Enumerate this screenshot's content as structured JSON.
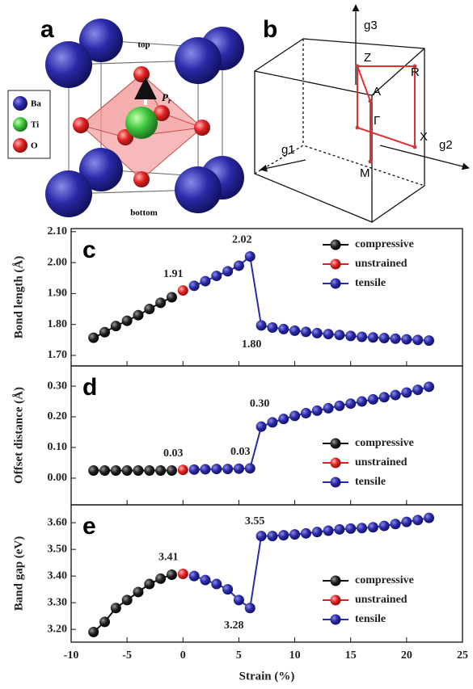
{
  "panels": {
    "a": {
      "label": "a",
      "top": "top",
      "bottom": "bottom",
      "polarization": "P",
      "polarization_sub": "r",
      "legend": [
        "Ba",
        "Ti",
        "O"
      ]
    },
    "b": {
      "label": "b",
      "axes": [
        "g1",
        "g2",
        "g3"
      ],
      "points": [
        "Z",
        "R",
        "A",
        "Γ",
        "X",
        "M"
      ]
    }
  },
  "chart_data": [
    {
      "type": "line",
      "label": "c",
      "ylabel": "Bond length (Å)",
      "legend": "upper right",
      "xlim": [
        -10,
        25
      ],
      "xticks": [
        -10,
        -5,
        0,
        5,
        10,
        15,
        20,
        25
      ],
      "ylim": [
        1.666,
        2.11
      ],
      "yticks": [
        {
          "value": 1.7,
          "label": "1.70"
        },
        {
          "value": 1.8,
          "label": "1.80"
        },
        {
          "value": 1.9,
          "label": "1.90"
        },
        {
          "value": 2.0,
          "label": "2.00"
        },
        {
          "value": 2.1,
          "label": "2.10"
        }
      ],
      "annotations": [
        "1.91",
        "2.02",
        "1.80"
      ],
      "series": [
        {
          "name": "compressive",
          "color": "#111111",
          "x": [
            -8,
            -7,
            -6,
            -5,
            -4,
            -3,
            -2,
            -1
          ],
          "values": [
            1.757,
            1.775,
            1.795,
            1.812,
            1.83,
            1.85,
            1.87,
            1.888
          ]
        },
        {
          "name": "unstrained",
          "color": "#e02020",
          "x": [
            0
          ],
          "values": [
            1.91
          ]
        },
        {
          "name": "tensile",
          "color": "#2a2aa8",
          "x": [
            1,
            2,
            3,
            4,
            5,
            6,
            7,
            8,
            9,
            10,
            11,
            12,
            13,
            14,
            15,
            16,
            17,
            18,
            19,
            20,
            21,
            22
          ],
          "values": [
            1.925,
            1.94,
            1.957,
            1.972,
            1.99,
            2.02,
            1.797,
            1.79,
            1.785,
            1.78,
            1.776,
            1.772,
            1.769,
            1.766,
            1.763,
            1.76,
            1.758,
            1.756,
            1.754,
            1.752,
            1.75,
            1.748
          ]
        }
      ]
    },
    {
      "type": "line",
      "label": "d",
      "ylabel": "Offset distance (Å)",
      "legend": "lower right",
      "xlim": [
        -10,
        25
      ],
      "xticks": [
        -10,
        -5,
        0,
        5,
        10,
        15,
        20,
        25
      ],
      "ylim": [
        -0.087,
        0.366
      ],
      "yticks": [
        {
          "value": 0,
          "label": "0.00"
        },
        {
          "value": 0.1,
          "label": "0.10"
        },
        {
          "value": 0.2,
          "label": "0.20"
        },
        {
          "value": 0.3,
          "label": "0.30"
        }
      ],
      "annotations": [
        "0.30",
        "0.03",
        "0.03"
      ],
      "series": [
        {
          "name": "compressive",
          "color": "#111111",
          "x": [
            -8,
            -7,
            -6,
            -5,
            -4,
            -3,
            -2,
            -1
          ],
          "values": [
            0.025,
            0.025,
            0.025,
            0.025,
            0.025,
            0.025,
            0.025,
            0.025
          ]
        },
        {
          "name": "unstrained",
          "color": "#e02020",
          "x": [
            0
          ],
          "values": [
            0.027
          ]
        },
        {
          "name": "tensile",
          "color": "#2a2aa8",
          "x": [
            1,
            2,
            3,
            4,
            5,
            6,
            7,
            8,
            9,
            10,
            11,
            12,
            13,
            14,
            15,
            16,
            17,
            18,
            19,
            20,
            21,
            22
          ],
          "values": [
            0.028,
            0.029,
            0.03,
            0.03,
            0.031,
            0.032,
            0.168,
            0.182,
            0.193,
            0.203,
            0.212,
            0.22,
            0.228,
            0.236,
            0.243,
            0.25,
            0.257,
            0.264,
            0.271,
            0.279,
            0.288,
            0.298
          ]
        }
      ]
    },
    {
      "type": "line",
      "label": "e",
      "ylabel": "Band gap (eV)",
      "xlabel": "Strain (%)",
      "legend": "lower right",
      "xlim": [
        -10,
        25
      ],
      "xticks": [
        -10,
        -5,
        0,
        5,
        10,
        15,
        20,
        25
      ],
      "ylim": [
        3.152,
        3.667
      ],
      "yticks": [
        {
          "value": 3.2,
          "label": "3.20"
        },
        {
          "value": 3.3,
          "label": "3.30"
        },
        {
          "value": 3.4,
          "label": "3.40"
        },
        {
          "value": 3.5,
          "label": "3.50"
        },
        {
          "value": 3.6,
          "label": "3.60"
        }
      ],
      "annotations": [
        "3.55",
        "3.41",
        "3.28"
      ],
      "series": [
        {
          "name": "compressive",
          "color": "#111111",
          "x": [
            -8,
            -7,
            -6,
            -5,
            -4,
            -3,
            -2,
            -1
          ],
          "values": [
            3.19,
            3.228,
            3.28,
            3.31,
            3.34,
            3.37,
            3.39,
            3.405
          ]
        },
        {
          "name": "unstrained",
          "color": "#e02020",
          "x": [
            0
          ],
          "values": [
            3.408
          ]
        },
        {
          "name": "tensile",
          "color": "#2a2aa8",
          "x": [
            1,
            2,
            3,
            4,
            5,
            6,
            7,
            8,
            9,
            10,
            11,
            12,
            13,
            14,
            15,
            16,
            17,
            18,
            19,
            20,
            21,
            22
          ],
          "values": [
            3.4,
            3.385,
            3.37,
            3.35,
            3.31,
            3.28,
            3.55,
            3.55,
            3.553,
            3.556,
            3.56,
            3.565,
            3.57,
            3.575,
            3.578,
            3.58,
            3.583,
            3.588,
            3.595,
            3.603,
            3.61,
            3.618
          ]
        }
      ]
    }
  ]
}
